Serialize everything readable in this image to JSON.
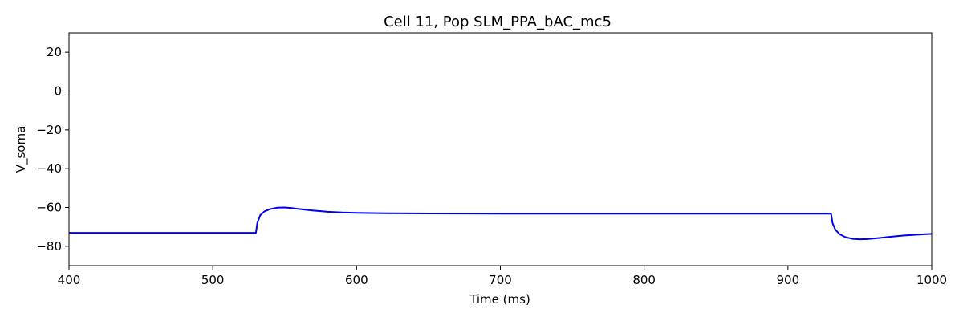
{
  "chart_data": {
    "type": "line",
    "title": "Cell 11, Pop SLM_PPA_bAC_mc5",
    "xlabel": "Time (ms)",
    "ylabel": "V_soma",
    "xlim": [
      400,
      1000
    ],
    "ylim": [
      -90,
      30
    ],
    "xticks": [
      400,
      500,
      600,
      700,
      800,
      900,
      1000
    ],
    "yticks": [
      -80,
      -60,
      -40,
      -20,
      0,
      20
    ],
    "xtick_labels": [
      "400",
      "500",
      "600",
      "700",
      "800",
      "900",
      "1000"
    ],
    "ytick_labels": [
      "−80",
      "−60",
      "−40",
      "−20",
      "0",
      "20"
    ],
    "grid": false,
    "series": [
      {
        "color": "#0000ee",
        "x": [
          400,
          450,
          500,
          530,
          531,
          533,
          536,
          540,
          545,
          550,
          555,
          560,
          570,
          580,
          590,
          600,
          620,
          650,
          700,
          750,
          800,
          850,
          900,
          930,
          931,
          933,
          936,
          940,
          945,
          950,
          955,
          960,
          965,
          970,
          980,
          990,
          1000
        ],
        "y": [
          -73.1,
          -73.1,
          -73.1,
          -73.1,
          -68,
          -64,
          -62,
          -60.8,
          -60.1,
          -60.0,
          -60.3,
          -60.8,
          -61.6,
          -62.2,
          -62.6,
          -62.8,
          -63.0,
          -63.1,
          -63.2,
          -63.2,
          -63.2,
          -63.2,
          -63.2,
          -63.2,
          -68,
          -71.5,
          -73.8,
          -75.3,
          -76.2,
          -76.4,
          -76.3,
          -76.0,
          -75.6,
          -75.2,
          -74.5,
          -74.0,
          -73.6
        ]
      }
    ]
  }
}
